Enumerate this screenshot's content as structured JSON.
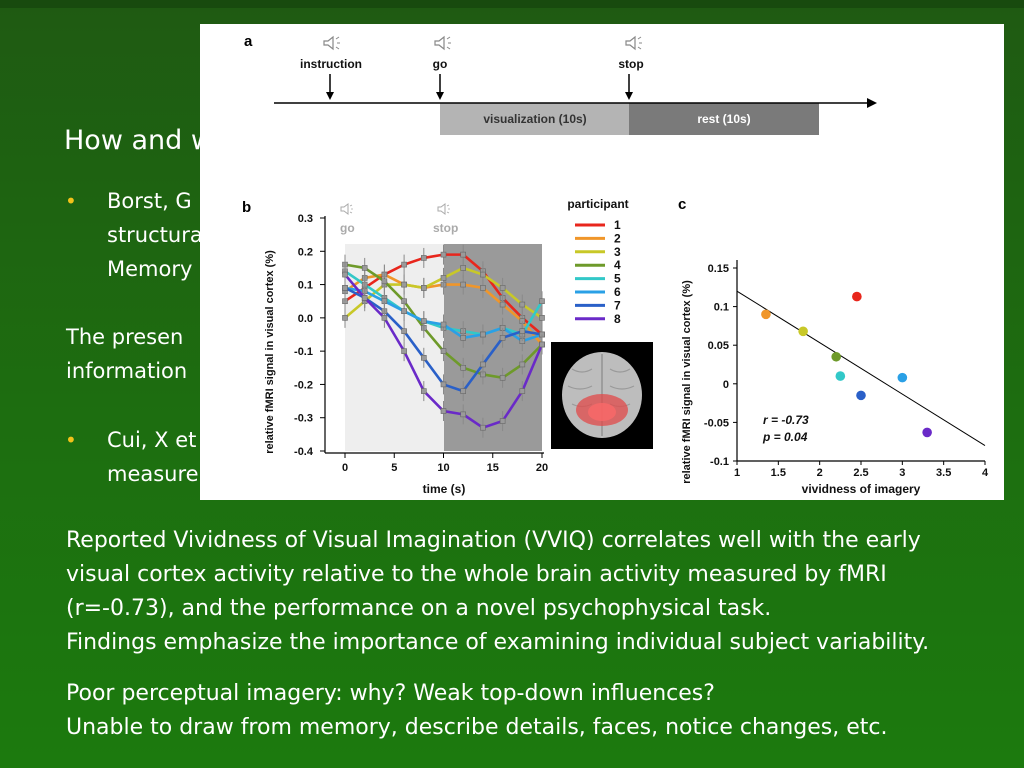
{
  "slide": {
    "title_partial": "How and w",
    "bullets": [
      {
        "line1": "Borst, G",
        "line2": "structura",
        "line3": "Memory"
      },
      {
        "line1": "Cui, X et",
        "line2": "measure"
      }
    ],
    "mid_text": {
      "line1": "The  presen",
      "line2": "information"
    },
    "paragraph1": [
      "Reported Vividness of Visual Imagination (VVIQ) correlates well with the early",
      "visual cortex activity relative to the whole brain activity measured by fMRI",
      "(r=-0.73), and the performance on a novel psychophysical task.",
      "Findings emphasize the importance of examining individual subject variability."
    ],
    "paragraph2": [
      "Poor perceptual imagery: why? Weak top-down influences?",
      "Unable to draw from memory, describe details, faces, notice changes, etc."
    ]
  },
  "figure": {
    "panel_a": {
      "label": "a",
      "events": [
        "instruction",
        "go",
        "stop"
      ],
      "phases": [
        "visualization (10s)",
        "rest (10s)"
      ]
    },
    "panel_b_label": "b",
    "panel_c_label": "c",
    "colors": {
      "gray_light": "#eeeeee",
      "gray_dark": "#9a9a9a",
      "viz_bar": "#b4b4b4",
      "rest_bar": "#7a7a7a"
    }
  },
  "chart_data": [
    {
      "type": "line",
      "panel": "b",
      "xlabel": "time (s)",
      "ylabel": "relative fMRI signal in visual cortex (%)",
      "xlim": [
        0,
        20
      ],
      "ylim": [
        -0.4,
        0.3
      ],
      "xticks": [
        "0",
        "5",
        "10",
        "15",
        "20"
      ],
      "yticks": [
        "0.3",
        "0.2",
        "0.1",
        "0.0",
        "-0.1",
        "-0.2",
        "-0.3",
        "-0.4"
      ],
      "phase_labels": [
        "go",
        "stop"
      ],
      "legend_title": "participant",
      "x": [
        0,
        2,
        4,
        6,
        8,
        10,
        12,
        14,
        16,
        18,
        20
      ],
      "series": [
        {
          "name": "1",
          "color": "#e8261c",
          "values": [
            0.05,
            0.09,
            0.13,
            0.16,
            0.18,
            0.19,
            0.19,
            0.14,
            0.06,
            0.0,
            -0.05
          ]
        },
        {
          "name": "2",
          "color": "#f0962a",
          "values": [
            0.08,
            0.12,
            0.13,
            0.1,
            0.09,
            0.1,
            0.1,
            0.09,
            0.04,
            -0.01,
            -0.08
          ]
        },
        {
          "name": "3",
          "color": "#c8c828",
          "values": [
            0.0,
            0.05,
            0.1,
            0.1,
            0.09,
            0.12,
            0.15,
            0.13,
            0.09,
            0.04,
            0.0
          ]
        },
        {
          "name": "4",
          "color": "#6e9a2a",
          "values": [
            0.16,
            0.15,
            0.11,
            0.05,
            -0.03,
            -0.1,
            -0.15,
            -0.17,
            -0.18,
            -0.14,
            -0.08
          ]
        },
        {
          "name": "5",
          "color": "#32c8c8",
          "values": [
            0.14,
            0.1,
            0.06,
            0.02,
            -0.01,
            -0.03,
            -0.04,
            -0.05,
            -0.03,
            -0.05,
            0.05
          ]
        },
        {
          "name": "6",
          "color": "#2aa0e6",
          "values": [
            0.09,
            0.08,
            0.05,
            0.02,
            -0.01,
            -0.02,
            -0.06,
            -0.05,
            -0.03,
            -0.07,
            -0.05
          ]
        },
        {
          "name": "7",
          "color": "#2a60c8",
          "values": [
            0.09,
            0.06,
            0.02,
            -0.04,
            -0.12,
            -0.2,
            -0.22,
            -0.14,
            -0.06,
            -0.04,
            -0.05
          ]
        },
        {
          "name": "8",
          "color": "#6a2ac8",
          "values": [
            0.13,
            0.06,
            0.0,
            -0.1,
            -0.22,
            -0.28,
            -0.29,
            -0.33,
            -0.31,
            -0.22,
            -0.08
          ]
        }
      ]
    },
    {
      "type": "scatter",
      "panel": "c",
      "xlabel": "vividness of imagery",
      "ylabel": "relative fMRI signal in visual cortex (%)",
      "xlim": [
        1,
        4
      ],
      "ylim": [
        -0.1,
        0.15
      ],
      "xticks": [
        "1",
        "1.5",
        "2",
        "2.5",
        "3",
        "3.5",
        "4"
      ],
      "yticks": [
        "0.15",
        "0.1",
        "0.05",
        "0",
        "-0.05",
        "-0.1"
      ],
      "annotation_r": "r = -0.73",
      "annotation_p": "p = 0.04",
      "fit_line": {
        "x": [
          1.0,
          4.0
        ],
        "y": [
          0.12,
          -0.08
        ]
      },
      "points": [
        {
          "x": 1.35,
          "y": 0.09,
          "color": "#f0962a"
        },
        {
          "x": 1.8,
          "y": 0.068,
          "color": "#c8c828"
        },
        {
          "x": 2.2,
          "y": 0.035,
          "color": "#6e9a2a"
        },
        {
          "x": 2.25,
          "y": 0.01,
          "color": "#32c8c8"
        },
        {
          "x": 2.45,
          "y": 0.113,
          "color": "#e8261c"
        },
        {
          "x": 2.5,
          "y": -0.015,
          "color": "#2a60c8"
        },
        {
          "x": 3.0,
          "y": 0.008,
          "color": "#2aa0e6"
        },
        {
          "x": 3.3,
          "y": -0.063,
          "color": "#6a2ac8"
        }
      ]
    }
  ]
}
